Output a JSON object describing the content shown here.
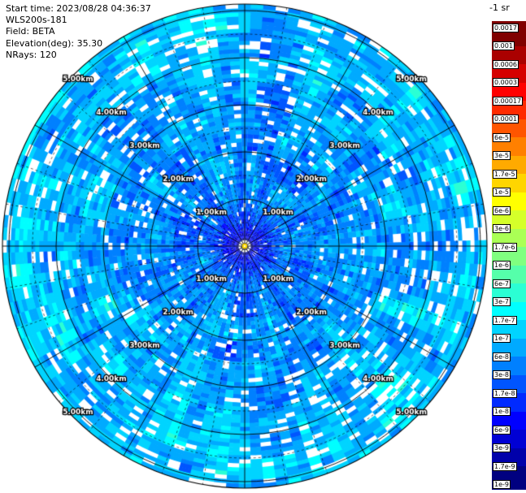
{
  "header": {
    "start_time": "Start time: 2023/08/28 04:36:37",
    "device": "WLS200s-181",
    "field": "Field: BETA",
    "elevation": "Elevation(deg): 35.30",
    "nrays": "NRays: 120"
  },
  "colorbar": {
    "title": "-1 sr",
    "colormap": "jet",
    "tick_labels": [
      "0.0017",
      "0.001",
      "0.0006",
      "0.0003",
      "0.00017",
      "0.0001",
      "6e-5",
      "3e-5",
      "1.7e-5",
      "1e-5",
      "6e-6",
      "3e-6",
      "1.7e-6",
      "1e-6",
      "6e-7",
      "3e-7",
      "1.7e-7",
      "1e-7",
      "6e-8",
      "3e-8",
      "1.7e-8",
      "1e-8",
      "6e-9",
      "3e-9",
      "1.7e-9",
      "1e-9"
    ],
    "tick_values": [
      0.0017,
      0.001,
      0.0006,
      0.0003,
      0.00017,
      0.0001,
      6e-05,
      3e-05,
      1.7e-05,
      1e-05,
      6e-06,
      3e-06,
      1.7e-06,
      1e-06,
      6e-07,
      3e-07,
      1.7e-07,
      1e-07,
      6e-08,
      3e-08,
      1.7e-08,
      1e-08,
      6e-09,
      3e-09,
      1.7e-09,
      1e-09
    ]
  },
  "chart_data": {
    "type": "heatmap",
    "projection": "polar-ppi",
    "instrument": "WLS200s-181",
    "field": "BETA",
    "elevation_deg": 35.3,
    "n_rays": 120,
    "rings_km": [
      1,
      2,
      3,
      4,
      5
    ],
    "ring_labels": [
      "1.00km",
      "2.00km",
      "3.00km",
      "4.00km",
      "5.00km"
    ],
    "ring_label_azimuths_deg": [
      45,
      135,
      225,
      315
    ],
    "max_range_km": 5.15,
    "angle_grid_solid_deg": 30,
    "angle_grid_dashed_deg": 10,
    "range_grid_dashed_km": 0.5,
    "value_scale": "log",
    "value_range": [
      1e-09,
      0.0017
    ],
    "data_character": "BETA backscatter mostly 1e-8 to 1e-6 (blue to cyan); darker blue near center, scattered white data gaps; yellow dot at origin (instrument location)"
  }
}
